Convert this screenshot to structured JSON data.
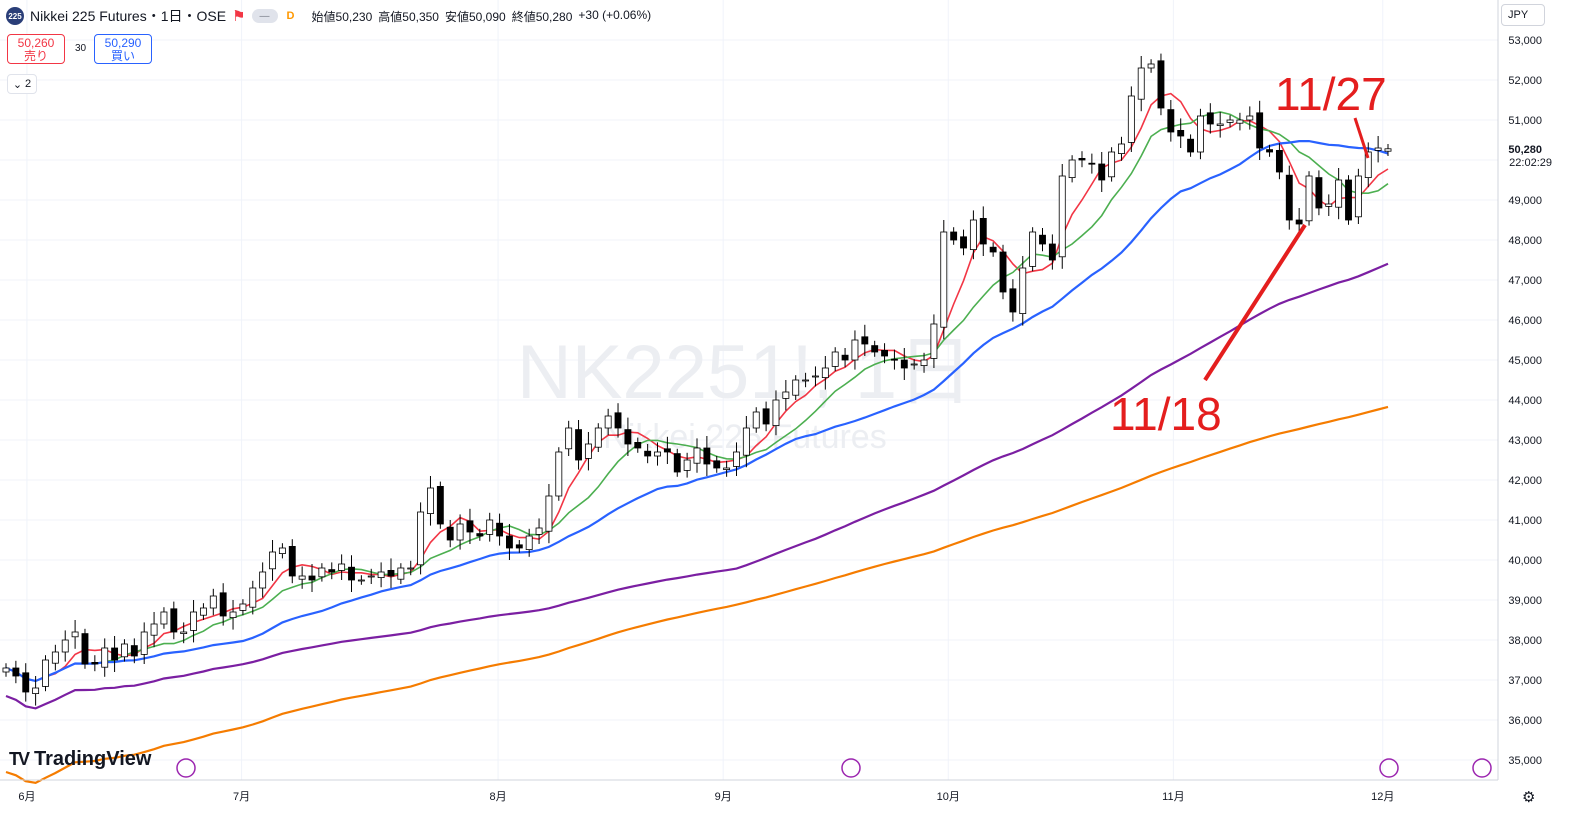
{
  "header": {
    "symbol_badge": "225",
    "title": "Nikkei 225 Futures・1日・OSE",
    "open_label": "始値",
    "open": "50,230",
    "high_label": "高値",
    "high": "50,350",
    "low_label": "安値",
    "low": "50,090",
    "close_label": "終値",
    "close": "50,280",
    "change": "+30 (+0.06%)",
    "delay_badge": "D"
  },
  "quote": {
    "sell_price": "50,260",
    "sell_label": "売り",
    "spread": "30",
    "buy_price": "50,290",
    "buy_label": "買い"
  },
  "indicators_toggle": {
    "count": "2"
  },
  "price_scale": {
    "currency": "JPY",
    "last_price": "50,280",
    "countdown": "22:02:29"
  },
  "watermark": {
    "symbol": "NK2251!, 1日",
    "name": "Nikkei 225 Futures"
  },
  "brand": "TradingView",
  "annotations": [
    {
      "text": "11/27",
      "color": "#e41e1e"
    },
    {
      "text": "11/18",
      "color": "#e41e1e"
    }
  ],
  "chart_data": {
    "type": "candlestick",
    "interval": "1D",
    "y_axis": {
      "min": 34500,
      "max": 54000,
      "ticks": [
        35000,
        36000,
        37000,
        38000,
        39000,
        40000,
        41000,
        42000,
        43000,
        44000,
        45000,
        46000,
        47000,
        48000,
        49000,
        50000,
        51000,
        52000,
        53000
      ],
      "tick_labels": [
        "35,000",
        "36,000",
        "37,000",
        "38,000",
        "39,000",
        "40,000",
        "41,000",
        "42,000",
        "43,000",
        "44,000",
        "45,000",
        "46,000",
        "47,000",
        "48,000",
        "49,000",
        "50,000",
        "51,000",
        "52,000",
        "53,000"
      ]
    },
    "x_axis": {
      "tick_labels": [
        "6月",
        "7月",
        "8月",
        "9月",
        "10月",
        "11月",
        "12月"
      ]
    },
    "closes": [
      37300,
      37100,
      36700,
      36800,
      37500,
      37700,
      38000,
      38200,
      37400,
      37400,
      37800,
      37500,
      37900,
      37600,
      38200,
      38400,
      38700,
      38200,
      38200,
      38700,
      38800,
      39100,
      38600,
      38700,
      38900,
      39300,
      39700,
      40200,
      40300,
      39600,
      39600,
      39500,
      39800,
      39700,
      39900,
      39500,
      39500,
      39600,
      39700,
      39600,
      39800,
      39800,
      41200,
      41800,
      40900,
      40500,
      40900,
      40700,
      40600,
      41000,
      40600,
      40300,
      40300,
      40600,
      40800,
      41600,
      42700,
      43300,
      42500,
      42900,
      43300,
      43600,
      43300,
      42900,
      42800,
      42600,
      42700,
      42700,
      42200,
      42500,
      42800,
      42400,
      42300,
      42300,
      42700,
      43300,
      43700,
      43400,
      44000,
      44200,
      44500,
      44500,
      44600,
      44800,
      45200,
      45000,
      45500,
      45400,
      45200,
      45100,
      45000,
      44800,
      44900,
      45000,
      45900,
      48200,
      48000,
      47800,
      48500,
      47900,
      47700,
      46700,
      46200,
      47300,
      48200,
      47900,
      47500,
      49600,
      50000,
      50000,
      49900,
      49500,
      50200,
      50400,
      51600,
      52300,
      52400,
      51300,
      50700,
      50600,
      50200,
      51100,
      50900,
      50900,
      51000,
      51000,
      51100,
      50300,
      50200,
      49700,
      48500,
      48400,
      49600,
      48800,
      48900,
      49500,
      48500,
      49600,
      50200,
      50300,
      50280
    ],
    "ma_series": [
      {
        "color": "#f23645",
        "period": 5
      },
      {
        "color": "#4caf50",
        "period": 10
      },
      {
        "color": "#2962ff",
        "period": 25
      },
      {
        "color": "#7b1fa2",
        "period": 75
      },
      {
        "color": "#f57c00",
        "period": 200
      }
    ]
  }
}
